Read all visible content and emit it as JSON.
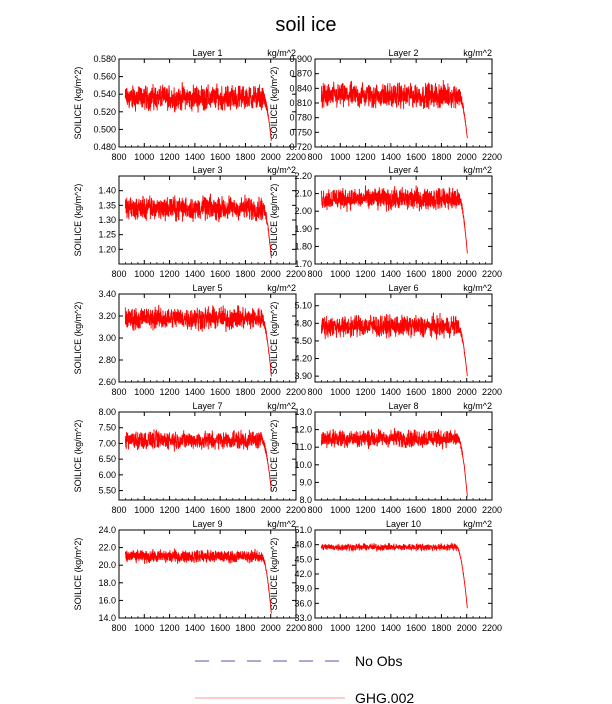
{
  "title": "soil ice",
  "units_label": "kg/m^2",
  "ylabel": "SOILICE  (kg/m^2)",
  "xaxis": {
    "min": 800,
    "max": 2200,
    "ticks": [
      800,
      1000,
      1200,
      1400,
      1600,
      1800,
      2000,
      2200
    ]
  },
  "legend": [
    {
      "name": "No Obs",
      "style": "dashed",
      "color": "#5555aa"
    },
    {
      "name": "GHG.002",
      "style": "solid",
      "color": "#ff9999"
    }
  ],
  "series_color": "#ff0000",
  "chart_data": [
    {
      "type": "line",
      "title": "Layer 1",
      "ylim": [
        0.48,
        0.58
      ],
      "yticks": [
        "0.480",
        "0.500",
        "0.520",
        "0.540",
        "0.560",
        "0.580"
      ],
      "x_range": [
        850,
        2005
      ],
      "base": 0.536,
      "amp": 0.014,
      "end_value": 0.487,
      "drop_start": 1940
    },
    {
      "type": "line",
      "title": "Layer 2",
      "ylim": [
        0.72,
        0.9
      ],
      "yticks": [
        "0.720",
        "0.750",
        "0.780",
        "0.810",
        "0.840",
        "0.870",
        "0.900"
      ],
      "x_range": [
        850,
        2005
      ],
      "base": 0.825,
      "amp": 0.025,
      "end_value": 0.738,
      "drop_start": 1940
    },
    {
      "type": "line",
      "title": "Layer 3",
      "ylim": [
        1.15,
        1.45
      ],
      "yticks": [
        "1.20",
        "1.25",
        "1.30",
        "1.35",
        "1.40"
      ],
      "x_range": [
        850,
        2005
      ],
      "base": 1.34,
      "amp": 0.04,
      "end_value": 1.17,
      "drop_start": 1940
    },
    {
      "type": "line",
      "title": "Layer 4",
      "ylim": [
        1.7,
        2.2
      ],
      "yticks": [
        "1.70",
        "1.80",
        "1.90",
        "2.00",
        "2.10",
        "2.20"
      ],
      "x_range": [
        850,
        2005
      ],
      "base": 2.07,
      "amp": 0.06,
      "end_value": 1.76,
      "drop_start": 1940
    },
    {
      "type": "line",
      "title": "Layer 5",
      "ylim": [
        2.6,
        3.4
      ],
      "yticks": [
        "2.60",
        "2.80",
        "3.00",
        "3.20",
        "3.40"
      ],
      "x_range": [
        850,
        2005
      ],
      "base": 3.18,
      "amp": 0.1,
      "end_value": 2.65,
      "drop_start": 1930
    },
    {
      "type": "line",
      "title": "Layer 6",
      "ylim": [
        3.8,
        5.3
      ],
      "yticks": [
        "3.90",
        "4.20",
        "4.50",
        "4.80",
        "5.10"
      ],
      "x_range": [
        850,
        2005
      ],
      "base": 4.75,
      "amp": 0.18,
      "end_value": 3.9,
      "drop_start": 1930
    },
    {
      "type": "line",
      "title": "Layer 7",
      "ylim": [
        5.2,
        8.0
      ],
      "yticks": [
        "5.50",
        "6.00",
        "6.50",
        "7.00",
        "7.50",
        "8.00"
      ],
      "x_range": [
        850,
        2005
      ],
      "base": 7.1,
      "amp": 0.28,
      "end_value": 5.5,
      "drop_start": 1930
    },
    {
      "type": "line",
      "title": "Layer 8",
      "ylim": [
        8.0,
        13.0
      ],
      "yticks": [
        "8.0",
        "9.0",
        "10.0",
        "11.0",
        "12.0",
        "13.0"
      ],
      "x_range": [
        850,
        2005
      ],
      "base": 11.5,
      "amp": 0.5,
      "end_value": 8.2,
      "drop_start": 1930
    },
    {
      "type": "line",
      "title": "Layer 9",
      "ylim": [
        14.0,
        24.0
      ],
      "yticks": [
        "14.0",
        "16.0",
        "18.0",
        "20.0",
        "22.0",
        "24.0"
      ],
      "x_range": [
        850,
        2005
      ],
      "base": 21.0,
      "amp": 0.7,
      "end_value": 14.5,
      "drop_start": 1930
    },
    {
      "type": "line",
      "title": "Layer 10",
      "ylim": [
        33.0,
        51.0
      ],
      "yticks": [
        "33.0",
        "36.0",
        "39.0",
        "42.0",
        "45.0",
        "48.0",
        "51.0"
      ],
      "x_range": [
        850,
        2005
      ],
      "base": 47.5,
      "amp": 0.7,
      "end_value": 35.0,
      "drop_start": 1920
    }
  ]
}
